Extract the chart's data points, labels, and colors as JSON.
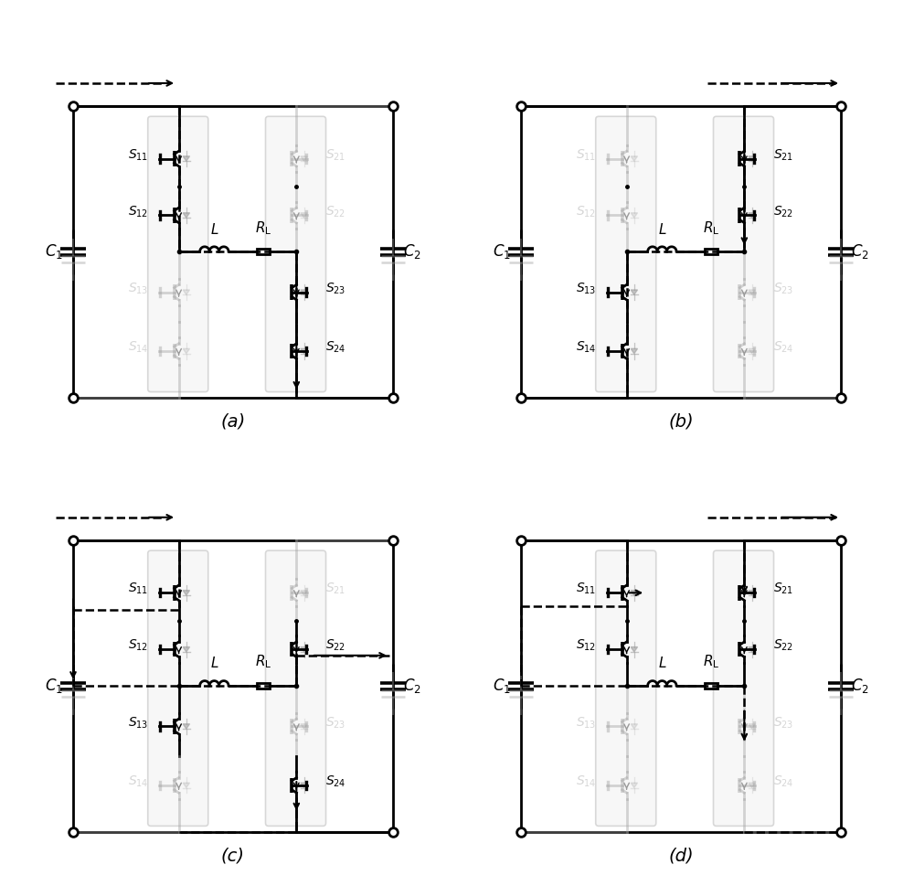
{
  "fig_width": 10.0,
  "fig_height": 9.69,
  "bg": "#ffffff",
  "panels": [
    "(a)",
    "(b)",
    "(c)",
    "(d)"
  ],
  "lw": 2.0,
  "lwd": 1.8,
  "gray": "#999999",
  "black": "#000000"
}
